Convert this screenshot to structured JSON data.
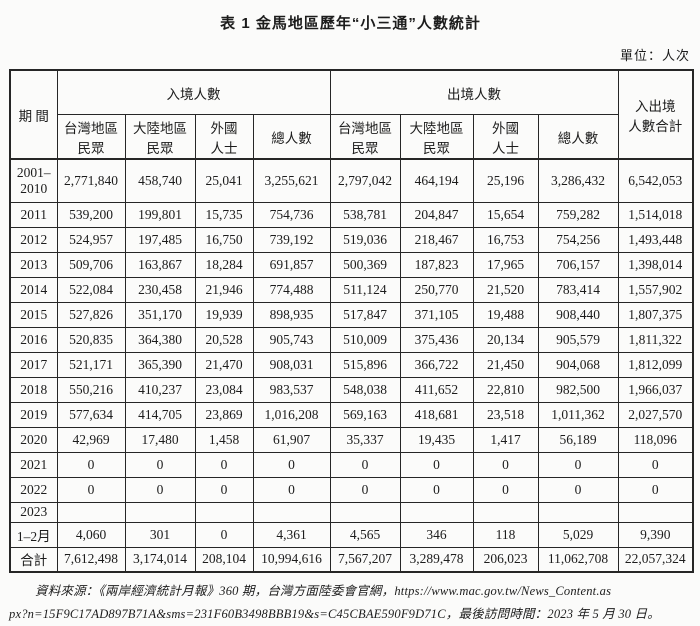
{
  "title": "表 1  金馬地區歷年“小三通”人數統計",
  "unit_label": "單位：人次",
  "table": {
    "header": {
      "period": "期  間",
      "inbound_group": "入境人數",
      "outbound_group": "出境人數",
      "total_combined": "入出境\n人數合計",
      "sub_columns": [
        "台灣地區\n民眾",
        "大陸地區\n民眾",
        "外國\n人士",
        "總人數"
      ]
    },
    "rows": [
      {
        "period": "2001–\n2010",
        "values": [
          "2,771,840",
          "458,740",
          "25,041",
          "3,255,621",
          "2,797,042",
          "464,194",
          "25,196",
          "3,286,432",
          "6,542,053"
        ]
      },
      {
        "period": "2011",
        "values": [
          "539,200",
          "199,801",
          "15,735",
          "754,736",
          "538,781",
          "204,847",
          "15,654",
          "759,282",
          "1,514,018"
        ]
      },
      {
        "period": "2012",
        "values": [
          "524,957",
          "197,485",
          "16,750",
          "739,192",
          "519,036",
          "218,467",
          "16,753",
          "754,256",
          "1,493,448"
        ]
      },
      {
        "period": "2013",
        "values": [
          "509,706",
          "163,867",
          "18,284",
          "691,857",
          "500,369",
          "187,823",
          "17,965",
          "706,157",
          "1,398,014"
        ]
      },
      {
        "period": "2014",
        "values": [
          "522,084",
          "230,458",
          "21,946",
          "774,488",
          "511,124",
          "250,770",
          "21,520",
          "783,414",
          "1,557,902"
        ]
      },
      {
        "period": "2015",
        "values": [
          "527,826",
          "351,170",
          "19,939",
          "898,935",
          "517,847",
          "371,105",
          "19,488",
          "908,440",
          "1,807,375"
        ]
      },
      {
        "period": "2016",
        "values": [
          "520,835",
          "364,380",
          "20,528",
          "905,743",
          "510,009",
          "375,436",
          "20,134",
          "905,579",
          "1,811,322"
        ]
      },
      {
        "period": "2017",
        "values": [
          "521,171",
          "365,390",
          "21,470",
          "908,031",
          "515,896",
          "366,722",
          "21,450",
          "904,068",
          "1,812,099"
        ]
      },
      {
        "period": "2018",
        "values": [
          "550,216",
          "410,237",
          "23,084",
          "983,537",
          "548,038",
          "411,652",
          "22,810",
          "982,500",
          "1,966,037"
        ]
      },
      {
        "period": "2019",
        "values": [
          "577,634",
          "414,705",
          "23,869",
          "1,016,208",
          "569,163",
          "418,681",
          "23,518",
          "1,011,362",
          "2,027,570"
        ]
      },
      {
        "period": "2020",
        "values": [
          "42,969",
          "17,480",
          "1,458",
          "61,907",
          "35,337",
          "19,435",
          "1,417",
          "56,189",
          "118,096"
        ]
      },
      {
        "period": "2021",
        "values": [
          "0",
          "0",
          "0",
          "0",
          "0",
          "0",
          "0",
          "0",
          "0"
        ]
      },
      {
        "period": "2022",
        "values": [
          "0",
          "0",
          "0",
          "0",
          "0",
          "0",
          "0",
          "0",
          "0"
        ]
      },
      {
        "period": "2023",
        "values": [
          "",
          "",
          "",
          "",
          "",
          "",
          "",
          "",
          ""
        ]
      },
      {
        "period": "1–2月",
        "values": [
          "4,060",
          "301",
          "0",
          "4,361",
          "4,565",
          "346",
          "118",
          "5,029",
          "9,390"
        ]
      },
      {
        "period": "合計",
        "values": [
          "7,612,498",
          "3,174,014",
          "208,104",
          "10,994,616",
          "7,567,207",
          "3,289,478",
          "206,023",
          "11,062,708",
          "22,057,324"
        ]
      }
    ]
  },
  "footer": {
    "line1": "資料來源：《兩岸經濟統計月報》360 期，台灣方面陸委會官網，https://www.mac.gov.tw/News_Content.as",
    "line2": "px?n=15F9C17AD897B71A&sms=231F60B3498BBB19&s=C45CBAE590F9D71C，最後訪問時間：2023 年 5 月 30 日。"
  }
}
